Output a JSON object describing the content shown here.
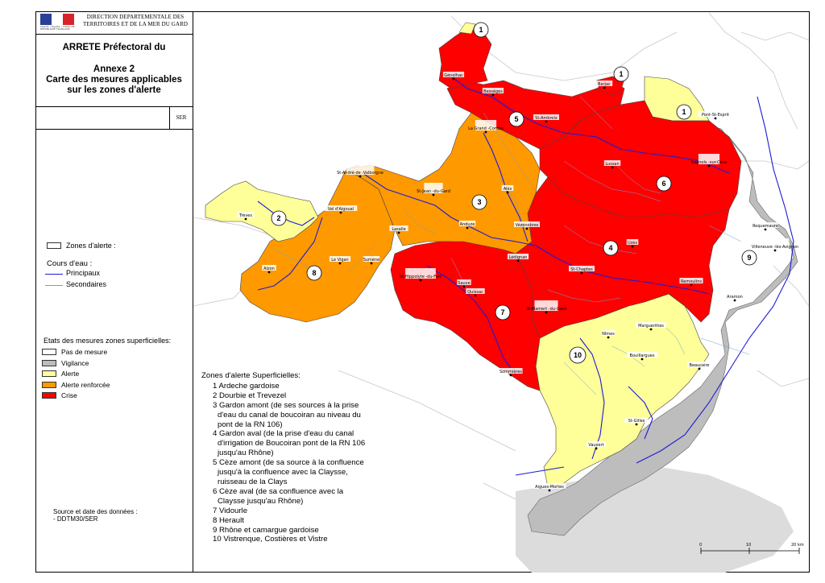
{
  "header": {
    "direction_line1": "DIRECTION DEPARTEMENTALE DES",
    "direction_line2": "TERRITOIRES ET DE LA MER DU GARD",
    "logo_caption": "Liberté • Égalité • Fraternité RÉPUBLIQUE FRANÇAISE",
    "arrete": "ARRETE Préfectoral du",
    "annexe_line1": "Annexe 2",
    "annexe_line2": "Carte des mesures applicables",
    "annexe_line3": "sur les zones d'alerte",
    "service": "SER"
  },
  "legend": {
    "zones_alerte": "Zones d'alerte :",
    "cours_eau": "Cours d'eau :",
    "principaux": "Principaux",
    "secondaires": "Secondaires",
    "etats_title": "Etats des mesures zones superficielles:",
    "states": [
      {
        "label": "Pas de mesure",
        "color": "#ffffff"
      },
      {
        "label": "Vigilance",
        "color": "#bdbdbd"
      },
      {
        "label": "Alerte",
        "color": "#ffff99"
      },
      {
        "label": "Alerte renforcée",
        "color": "#ff9900"
      },
      {
        "label": "Crise",
        "color": "#ff0000"
      }
    ],
    "principal_color": "#1b1bd6",
    "secondary_color": "#6f9fd8"
  },
  "source": {
    "line1": "Source et date des données :",
    "line2": "- DDTM30/SER"
  },
  "zones": {
    "title": "Zones d'alerte Superficielles:",
    "items": [
      "1 Ardeche gardoise",
      "2 Dourbie et Trevezel",
      "3 Gardon amont (de ses sources à la prise d'eau du canal de boucoiran au niveau du pont de la RN 106)",
      "4 Gardon aval (de la prise d'eau du canal d'irrigation de Boucoiran pont de la RN 106 jusqu'au Rhône)",
      "5 Cèze amont (de sa source à la confluence jusqu'à la confluence avec la Claysse, ruisseau de la Clays",
      "6 Cèze aval (de sa confluence avec la Claysse jusqu'au Rhône)",
      "7 Vidourle",
      "8 Herault",
      "9 Rhône et camargue gardoise",
      "10 Vistrenque, Costières et Vistre"
    ],
    "numbers": [
      "1",
      "1",
      "1",
      "2",
      "3",
      "4",
      "5",
      "6",
      "7",
      "8",
      "9",
      "10"
    ]
  },
  "towns": [
    "Génolhac",
    "Bessèges",
    "Barjac",
    "St-Ambroix",
    "Pont-St-Esprit",
    "La Grand -Combe",
    "Lussan",
    "Bagnols -sur-Cèze",
    "St-André-de -Valborgne",
    "St-Jean -du-Gard",
    "Alès",
    "Trèves",
    "Val d'Aigoual",
    "Anduze",
    "Vézénobres",
    "Lasalle",
    "Roquemaure",
    "Uzès",
    "Villeneuve -lès-Avignon",
    "Le Vigan",
    "Sumène",
    "Alzon",
    "Lédignan",
    "St-Chaptes",
    "St-Hippolyte -du-Fort",
    "Sauve",
    "Quissac",
    "Remoulins",
    "Aramon",
    "St-Mamert -du-Gard",
    "Nîmes",
    "Marguerittes",
    "Bouillargues",
    "Beaucaire",
    "Sommières",
    "St-Gilles",
    "Vauvert",
    "Aigues-Mortes"
  ],
  "scale": {
    "labels": [
      "0",
      "10",
      "20 km"
    ]
  }
}
